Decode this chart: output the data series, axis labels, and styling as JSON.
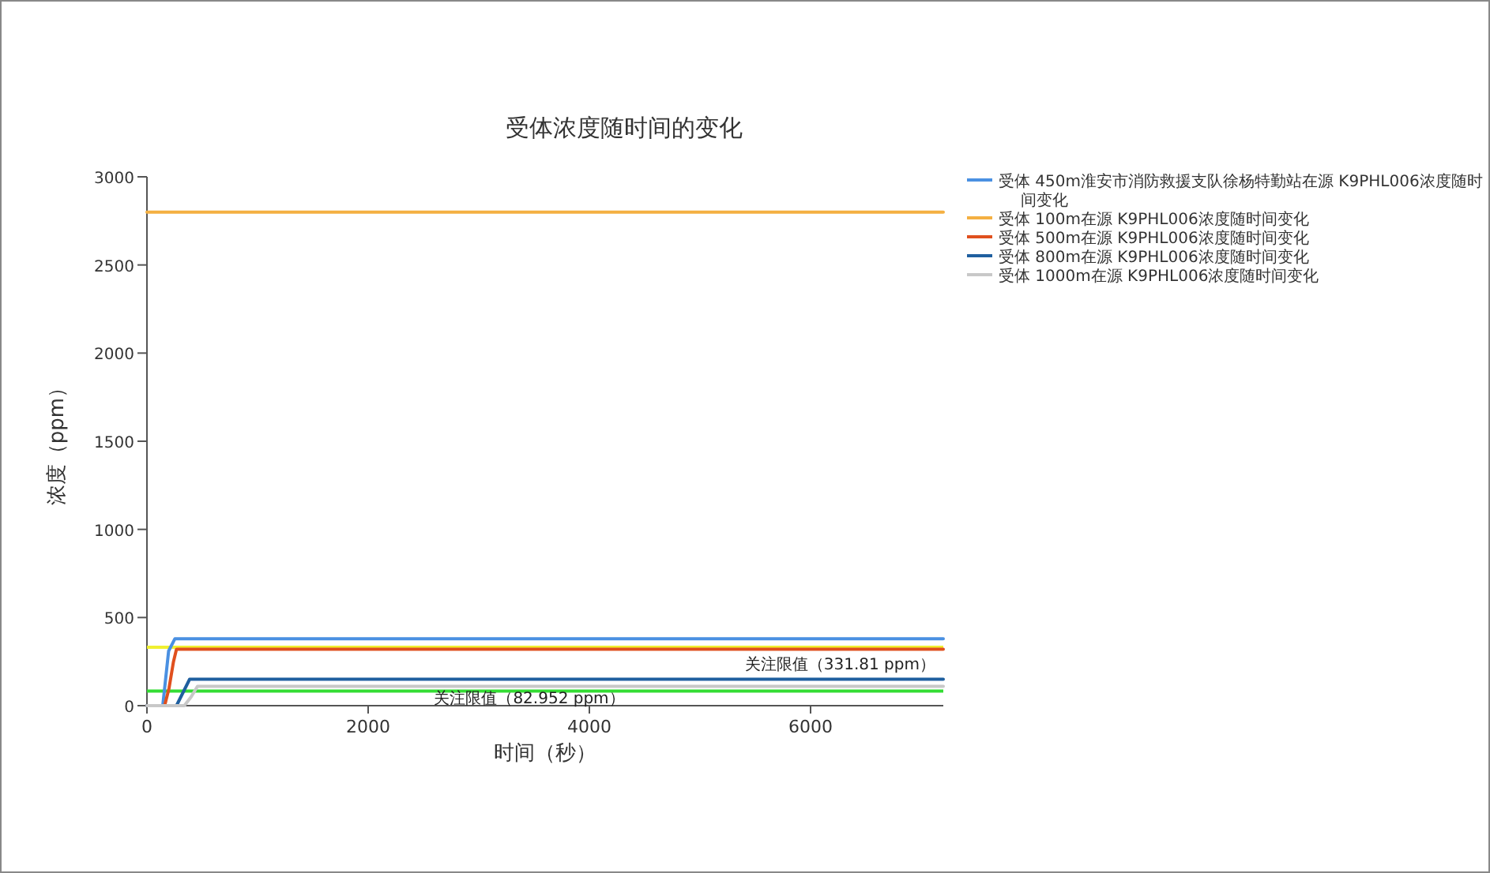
{
  "chart_data": {
    "type": "line",
    "title": "受体浓度随时间的变化",
    "xlabel": "时间（秒）",
    "ylabel": "浓度（ppm）",
    "xlim": [
      0,
      7200
    ],
    "xticks": [
      0,
      2000,
      4000,
      6000
    ],
    "ylim": [
      0,
      3000
    ],
    "yticks": [
      0,
      500,
      1000,
      1500,
      2000,
      2500,
      3000
    ],
    "grid": false,
    "legend": "top right",
    "marker": "none",
    "line_style": "solid",
    "series": [
      {
        "name": "受体 450m淮安市消防救援支队徐杨特勤站在源 K9PHL006浓度随时间变化",
        "color": "#4a90e2",
        "x": [
          0,
          143,
          196,
          253,
          7200
        ],
        "values": [
          0,
          0,
          310,
          380,
          380
        ]
      },
      {
        "name": "受体 100m在源 K9PHL006浓度随时间变化",
        "color": "#f4b042",
        "x": [
          0,
          7200
        ],
        "values": [
          2800,
          2800
        ]
      },
      {
        "name": "受体 500m在源 K9PHL006浓度随时间变化",
        "color": "#e0501e",
        "x": [
          0,
          160,
          200,
          240,
          267,
          7200
        ],
        "values": [
          0,
          0,
          100,
          250,
          320,
          320
        ]
      },
      {
        "name": "受体 800m在源 K9PHL006浓度随时间变化",
        "color": "#1f5f9f",
        "x": [
          0,
          267,
          386,
          7200
        ],
        "values": [
          0,
          0,
          150,
          150
        ]
      },
      {
        "name": "受体 1000m在源 K9PHL006浓度随时间变化",
        "color": "#c8c8c8",
        "x": [
          0,
          338,
          400,
          457,
          7200
        ],
        "values": [
          0,
          0,
          50,
          110,
          110
        ]
      }
    ],
    "ref_lines": [
      {
        "axis": "y",
        "value": 331.81,
        "label": "关注限值（331.81 ppm）",
        "color": "#f0f030"
      },
      {
        "axis": "y",
        "value": 82.952,
        "label": "关注限值（82.952 ppm）",
        "color": "#33dd33"
      }
    ]
  }
}
